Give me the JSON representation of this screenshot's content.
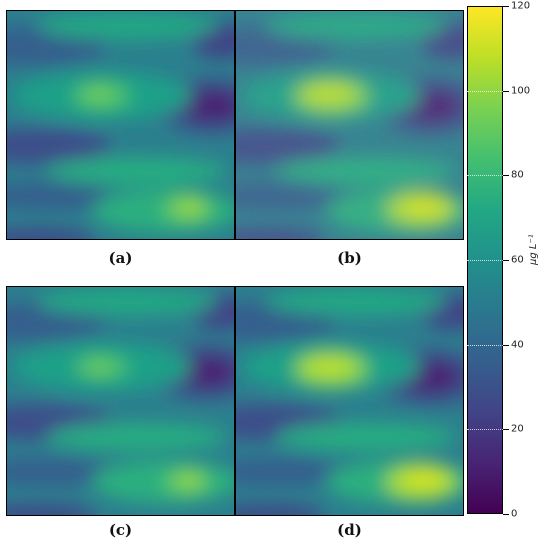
{
  "chart_data": {
    "type": "heatmap",
    "panels": [
      {
        "label": "(a)"
      },
      {
        "label": "(b)"
      },
      {
        "label": "(c)"
      },
      {
        "label": "(d)"
      }
    ],
    "colorbar": {
      "colormap": "viridis",
      "range": [
        0,
        120
      ],
      "ticks": [
        "0",
        "20",
        "40",
        "60",
        "80",
        "100",
        "120"
      ],
      "label": "μg L⁻¹"
    }
  }
}
